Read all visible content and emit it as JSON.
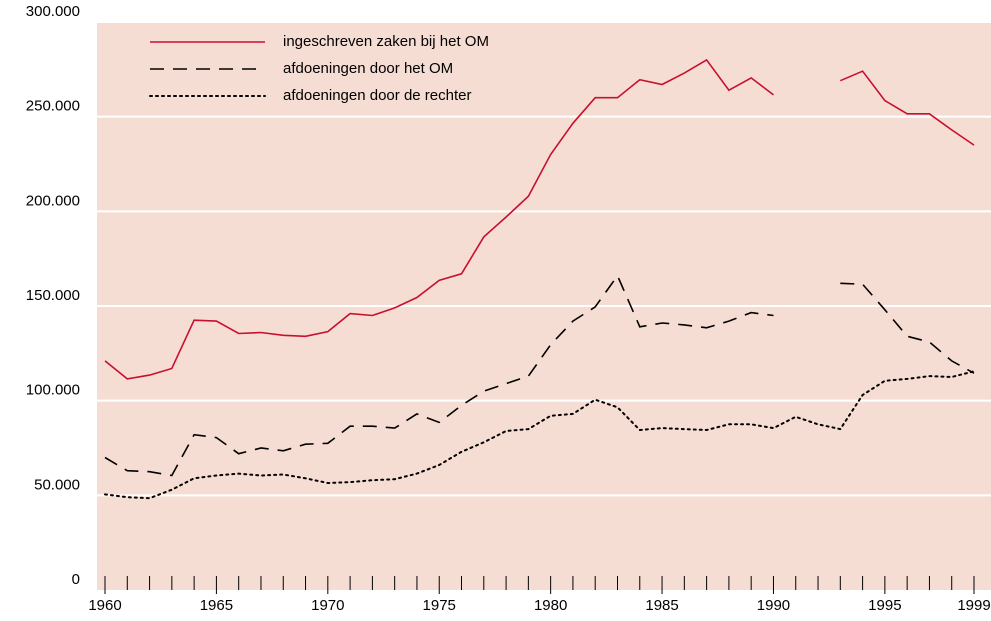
{
  "chart_data": {
    "type": "line",
    "x": [
      1960,
      1961,
      1962,
      1963,
      1964,
      1965,
      1966,
      1967,
      1968,
      1969,
      1970,
      1971,
      1972,
      1973,
      1974,
      1975,
      1976,
      1977,
      1978,
      1979,
      1980,
      1981,
      1982,
      1983,
      1984,
      1985,
      1986,
      1987,
      1988,
      1989,
      1990,
      1991,
      1992,
      1993,
      1994,
      1995,
      1996,
      1997,
      1998,
      1999
    ],
    "xlim": [
      1960,
      1999
    ],
    "xticks": [
      1960,
      1965,
      1970,
      1975,
      1980,
      1985,
      1990,
      1995,
      1999
    ],
    "ylim": [
      0,
      300000
    ],
    "yticks": [
      0,
      {
        "value": 50000,
        "label": "50.000"
      },
      {
        "value": 100000,
        "label": "100.000"
      },
      {
        "value": 150000,
        "label": "150.000"
      },
      {
        "value": 200000,
        "label": "200.000"
      },
      {
        "value": 250000,
        "label": "250.000"
      },
      {
        "value": 300000,
        "label": "300.000"
      }
    ],
    "grid": true,
    "legend": "upper left",
    "series": [
      {
        "name": "ingeschreven zaken bij het OM",
        "color": "#c8102e",
        "dash": "solid",
        "values": [
          121000,
          111500,
          113500,
          117000,
          142500,
          142000,
          135500,
          136000,
          134500,
          134000,
          136500,
          146000,
          145000,
          149000,
          154500,
          163500,
          167000,
          186500,
          197000,
          208000,
          230000,
          246500,
          260000,
          260000,
          269500,
          267000,
          273000,
          280000,
          264000,
          270500,
          261500,
          null,
          null,
          269000,
          274000,
          258500,
          251500,
          251500,
          243000,
          235000
        ]
      },
      {
        "name": "afdoeningen door het OM",
        "color": "#000000",
        "dash": "dashed",
        "values": [
          70000,
          63000,
          62500,
          60500,
          82000,
          80500,
          72000,
          75000,
          73500,
          77000,
          77500,
          86500,
          86500,
          85500,
          93000,
          88500,
          97500,
          105000,
          109000,
          113000,
          129500,
          142000,
          149500,
          166000,
          139000,
          141000,
          140000,
          138500,
          142000,
          146500,
          145000,
          null,
          null,
          162000,
          161500,
          148000,
          134000,
          131000,
          121000,
          114500
        ]
      },
      {
        "name": "afdoeningen door de rechter",
        "color": "#000000",
        "dash": "dotted",
        "values": [
          50500,
          49000,
          48500,
          53000,
          59000,
          60500,
          61500,
          60500,
          61000,
          59000,
          56500,
          57000,
          58000,
          58500,
          61500,
          66000,
          73000,
          78000,
          84000,
          85000,
          92000,
          93000,
          100500,
          96500,
          84500,
          85500,
          85000,
          84500,
          87500,
          87500,
          85500,
          91500,
          87500,
          85000,
          103000,
          110500,
          111500,
          113000,
          112500,
          115500
        ]
      }
    ]
  }
}
